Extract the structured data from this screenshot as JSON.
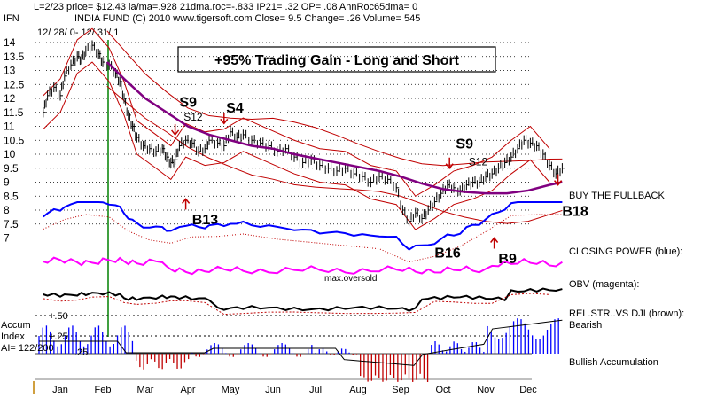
{
  "header": {
    "line1": "L=2/23  price= $12.43  la/ma=.928 21dma.roc=-.833 IP21= .32 OP= .08 AnnRoc65dma= 0",
    "symbol": "IFN",
    "line2": "INDIA FUND  (C) 2010  www.tigersoft.com    Close=  9.5  Change= .26 Volume= 545",
    "range": "12/ 28/ 0-  12/ 31/ 1"
  },
  "headline": "+95% Trading Gain - Long and Short",
  "chart_data": {
    "type": "line",
    "price_axis_ticks": [
      "14",
      "13.5",
      "13",
      "12.5",
      "12",
      "11.5",
      "11",
      "10.5",
      "10",
      "9.5",
      "9",
      "8.5",
      "8",
      "7.5",
      "7"
    ],
    "ylim": [
      7,
      14
    ],
    "x_axis_months": [
      "Jan",
      "Feb",
      "Mar",
      "Apr",
      "May",
      "Jun",
      "Jul",
      "Aug",
      "Sep",
      "Oct",
      "Nov",
      "Dec"
    ],
    "signals": [
      {
        "label": "S9",
        "month": 3.3,
        "value": 11.7,
        "size": "big"
      },
      {
        "label": "S12",
        "month": 3.4,
        "value": 11.2,
        "size": "small"
      },
      {
        "label": "S4",
        "month": 4.4,
        "value": 11.5,
        "size": "big"
      },
      {
        "label": "B13",
        "month": 3.6,
        "value": 7.5,
        "size": "big"
      },
      {
        "label": "S9",
        "month": 9.8,
        "value": 10.2,
        "size": "big"
      },
      {
        "label": "S12",
        "month": 10.1,
        "value": 9.6,
        "size": "small"
      },
      {
        "label": "B16",
        "month": 9.3,
        "value": 6.3,
        "size": "big"
      },
      {
        "label": "B9",
        "month": 10.8,
        "value": 6.1,
        "size": "big"
      },
      {
        "label": "B18",
        "month": 12.3,
        "value": 7.8,
        "size": "big"
      }
    ],
    "price_series": [
      [
        0.1,
        11.5
      ],
      [
        0.2,
        12.1
      ],
      [
        0.35,
        12.4
      ],
      [
        0.5,
        12.1
      ],
      [
        0.6,
        12.8
      ],
      [
        0.75,
        13.2
      ],
      [
        0.9,
        13.5
      ],
      [
        1.0,
        13.4
      ],
      [
        1.1,
        13.7
      ],
      [
        1.25,
        13.9
      ],
      [
        1.4,
        13.6
      ],
      [
        1.5,
        13.3
      ],
      [
        1.65,
        13.2
      ],
      [
        1.8,
        12.9
      ],
      [
        1.9,
        12.6
      ],
      [
        2.0,
        12.0
      ],
      [
        2.1,
        11.4
      ],
      [
        2.2,
        11.0
      ],
      [
        2.3,
        10.6
      ],
      [
        2.45,
        10.3
      ],
      [
        2.6,
        10.2
      ],
      [
        2.75,
        10.1
      ],
      [
        2.9,
        10.2
      ],
      [
        3.0,
        9.9
      ],
      [
        3.1,
        9.7
      ],
      [
        3.2,
        9.8
      ],
      [
        3.3,
        10.3
      ],
      [
        3.45,
        10.5
      ],
      [
        3.6,
        10.4
      ],
      [
        3.75,
        10.1
      ],
      [
        3.9,
        10.2
      ],
      [
        4.0,
        10.5
      ],
      [
        4.2,
        10.4
      ],
      [
        4.35,
        10.3
      ],
      [
        4.5,
        10.8
      ],
      [
        4.65,
        10.6
      ],
      [
        4.8,
        10.7
      ],
      [
        5.0,
        10.5
      ],
      [
        5.2,
        10.4
      ],
      [
        5.4,
        10.3
      ],
      [
        5.6,
        10.1
      ],
      [
        5.8,
        10.2
      ],
      [
        6.0,
        9.9
      ],
      [
        6.2,
        9.7
      ],
      [
        6.4,
        9.8
      ],
      [
        6.6,
        9.6
      ],
      [
        6.8,
        9.5
      ],
      [
        7.0,
        9.4
      ],
      [
        7.2,
        9.5
      ],
      [
        7.4,
        9.3
      ],
      [
        7.6,
        9.2
      ],
      [
        7.8,
        9.0
      ],
      [
        8.0,
        9.2
      ],
      [
        8.2,
        9.1
      ],
      [
        8.4,
        8.8
      ],
      [
        8.55,
        8.0
      ],
      [
        8.7,
        7.6
      ],
      [
        8.85,
        7.9
      ],
      [
        9.0,
        7.7
      ],
      [
        9.15,
        8.0
      ],
      [
        9.3,
        8.3
      ],
      [
        9.45,
        8.6
      ],
      [
        9.6,
        8.9
      ],
      [
        9.75,
        8.8
      ],
      [
        9.9,
        8.7
      ],
      [
        10.05,
        8.9
      ],
      [
        10.2,
        9.0
      ],
      [
        10.35,
        9.0
      ],
      [
        10.5,
        9.2
      ],
      [
        10.65,
        9.3
      ],
      [
        10.8,
        9.5
      ],
      [
        10.95,
        9.7
      ],
      [
        11.1,
        9.9
      ],
      [
        11.25,
        10.2
      ],
      [
        11.4,
        10.5
      ],
      [
        11.55,
        10.4
      ],
      [
        11.7,
        10.3
      ],
      [
        11.85,
        10.0
      ],
      [
        12.0,
        9.6
      ],
      [
        12.15,
        9.3
      ],
      [
        12.3,
        9.5
      ]
    ],
    "ma_series": [
      [
        1.6,
        13.3
      ],
      [
        2.0,
        12.7
      ],
      [
        2.5,
        12.0
      ],
      [
        3.0,
        11.5
      ],
      [
        3.5,
        11.0
      ],
      [
        4.0,
        10.7
      ],
      [
        4.5,
        10.5
      ],
      [
        5.0,
        10.3
      ],
      [
        5.5,
        10.2
      ],
      [
        6.0,
        10.0
      ],
      [
        6.5,
        9.85
      ],
      [
        7.0,
        9.7
      ],
      [
        7.5,
        9.55
      ],
      [
        8.0,
        9.4
      ],
      [
        8.5,
        9.2
      ],
      [
        9.0,
        8.95
      ],
      [
        9.5,
        8.75
      ],
      [
        10.0,
        8.65
      ],
      [
        10.5,
        8.6
      ],
      [
        11.0,
        8.6
      ],
      [
        11.5,
        8.7
      ],
      [
        12.0,
        8.9
      ],
      [
        12.3,
        9.0
      ]
    ],
    "indicators": [
      {
        "name": "BUY THE PULLBACK",
        "value": ""
      },
      {
        "name": "CLOSING POWER (blue):",
        "value": ""
      },
      {
        "name": "OBV (magenta):",
        "value": ""
      },
      {
        "name": "REL.STR..VS DJI (brown):",
        "value": "Bearish"
      },
      {
        "name": "Bullish Accumulation",
        "value": ""
      }
    ],
    "annotation_oversold": "max.oversold",
    "accum": {
      "title1": "Accum",
      "title2": "Index",
      "reading": "AI= 122/200",
      "ticks": [
        "+.50",
        "+.25",
        ".25"
      ]
    }
  },
  "colors": {
    "price_bars": "#000000",
    "ma_purple": "#800080",
    "bands_red": "#c00000",
    "closing_power": "#0000ff",
    "obv": "#ff00ff",
    "rel_strength": "#000000",
    "accum_pos": "#0000ff",
    "accum_neg": "#c00000",
    "vertical_line": "#008000"
  }
}
